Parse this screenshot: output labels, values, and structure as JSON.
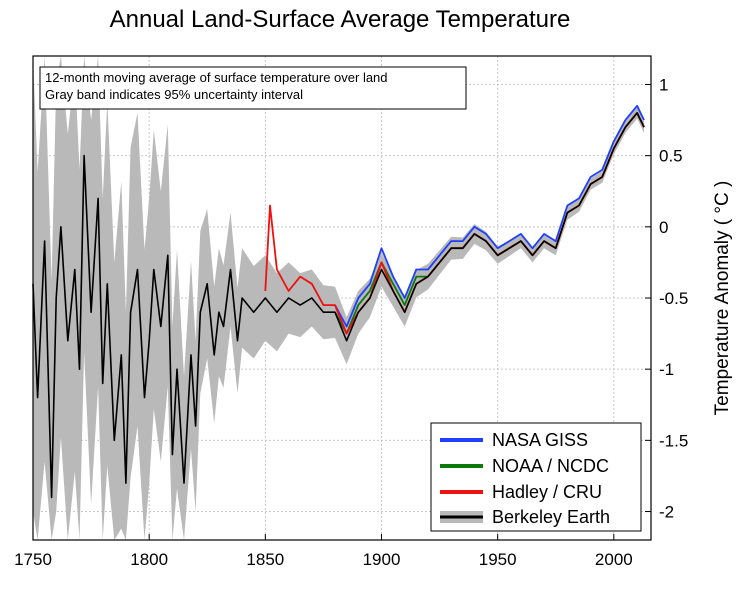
{
  "chart_data": {
    "type": "line",
    "title": "Annual Land-Surface Average Temperature",
    "annotation": [
      "12-month moving average of surface temperature over land",
      "Gray band indicates 95% uncertainty interval"
    ],
    "xlabel": "",
    "ylabel": "Temperature Anomaly ( °C )",
    "xlim": [
      1750,
      2016
    ],
    "ylim": [
      -2.2,
      1.2
    ],
    "xticks": [
      1750,
      1800,
      1850,
      1900,
      1950,
      2000
    ],
    "yticks": [
      1,
      0.5,
      0,
      -0.5,
      -1,
      -1.5,
      -2
    ],
    "ytick_labels": [
      "1",
      "0.5",
      "0",
      "-0.5",
      "-1",
      "-1.5",
      "-2"
    ],
    "grid": true,
    "legend_position": "bottom-right",
    "series": [
      {
        "name": "NASA GISS",
        "color": "#1f3fff",
        "x": [
          1880,
          1885,
          1890,
          1895,
          1900,
          1905,
          1910,
          1915,
          1920,
          1925,
          1930,
          1935,
          1940,
          1945,
          1950,
          1955,
          1960,
          1965,
          1970,
          1975,
          1980,
          1985,
          1990,
          1995,
          2000,
          2005,
          2010,
          2013
        ],
        "y": [
          -0.55,
          -0.7,
          -0.5,
          -0.4,
          -0.15,
          -0.35,
          -0.5,
          -0.3,
          -0.3,
          -0.2,
          -0.1,
          -0.1,
          0.0,
          -0.05,
          -0.15,
          -0.1,
          -0.05,
          -0.15,
          -0.05,
          -0.1,
          0.15,
          0.2,
          0.35,
          0.4,
          0.6,
          0.75,
          0.85,
          0.75
        ]
      },
      {
        "name": "NOAA / NCDC",
        "color": "#0a7a0a",
        "x": [
          1880,
          1885,
          1890,
          1895,
          1900,
          1905,
          1910,
          1915,
          1920,
          1925,
          1930,
          1935,
          1940,
          1945,
          1950,
          1955,
          1960,
          1965,
          1970,
          1975,
          1980,
          1985,
          1990,
          1995,
          2000,
          2005,
          2010,
          2013
        ],
        "y": [
          -0.6,
          -0.75,
          -0.55,
          -0.45,
          -0.25,
          -0.4,
          -0.55,
          -0.35,
          -0.35,
          -0.25,
          -0.15,
          -0.15,
          -0.05,
          -0.1,
          -0.2,
          -0.15,
          -0.1,
          -0.2,
          -0.1,
          -0.15,
          0.1,
          0.15,
          0.3,
          0.35,
          0.55,
          0.7,
          0.8,
          0.7
        ]
      },
      {
        "name": "Hadley / CRU",
        "color": "#ee1111",
        "x": [
          1850,
          1852,
          1855,
          1860,
          1865,
          1870,
          1875,
          1880,
          1885,
          1890,
          1895,
          1900,
          1905,
          1910,
          1915,
          1920,
          1925,
          1930,
          1935,
          1940,
          1945,
          1950,
          1955,
          1960,
          1965,
          1970,
          1975,
          1980,
          1985,
          1990,
          1995,
          2000,
          2005,
          2010,
          2013
        ],
        "y": [
          -0.45,
          0.15,
          -0.3,
          -0.45,
          -0.35,
          -0.4,
          -0.55,
          -0.55,
          -0.75,
          -0.6,
          -0.5,
          -0.25,
          -0.45,
          -0.6,
          -0.4,
          -0.35,
          -0.25,
          -0.15,
          -0.15,
          -0.05,
          -0.1,
          -0.2,
          -0.15,
          -0.1,
          -0.2,
          -0.1,
          -0.15,
          0.1,
          0.15,
          0.3,
          0.35,
          0.55,
          0.7,
          0.8,
          0.7
        ]
      },
      {
        "name": "Berkeley Earth",
        "color": "#000000",
        "x": [
          1750,
          1752,
          1755,
          1758,
          1760,
          1762,
          1765,
          1768,
          1770,
          1772,
          1775,
          1778,
          1780,
          1782,
          1785,
          1788,
          1790,
          1792,
          1795,
          1798,
          1800,
          1802,
          1805,
          1808,
          1810,
          1812,
          1815,
          1818,
          1820,
          1822,
          1825,
          1828,
          1830,
          1832,
          1835,
          1838,
          1840,
          1845,
          1850,
          1855,
          1860,
          1865,
          1870,
          1875,
          1880,
          1885,
          1890,
          1895,
          1900,
          1905,
          1910,
          1915,
          1920,
          1925,
          1930,
          1935,
          1940,
          1945,
          1950,
          1955,
          1960,
          1965,
          1970,
          1975,
          1980,
          1985,
          1990,
          1995,
          2000,
          2005,
          2010,
          2013
        ],
        "y": [
          -0.4,
          -1.2,
          -0.1,
          -1.9,
          -0.5,
          0.0,
          -0.8,
          -0.3,
          -1.0,
          0.5,
          -0.6,
          0.2,
          -1.1,
          -0.4,
          -1.5,
          -0.9,
          -1.8,
          -0.6,
          -0.3,
          -1.2,
          -0.8,
          -0.3,
          -0.7,
          -0.2,
          -1.6,
          -1.0,
          -1.8,
          -0.9,
          -1.4,
          -0.6,
          -0.4,
          -0.9,
          -0.6,
          -0.7,
          -0.3,
          -0.8,
          -0.5,
          -0.6,
          -0.5,
          -0.6,
          -0.5,
          -0.55,
          -0.5,
          -0.6,
          -0.6,
          -0.8,
          -0.6,
          -0.5,
          -0.3,
          -0.45,
          -0.6,
          -0.4,
          -0.35,
          -0.25,
          -0.15,
          -0.15,
          -0.05,
          -0.1,
          -0.2,
          -0.15,
          -0.1,
          -0.2,
          -0.1,
          -0.15,
          0.1,
          0.15,
          0.3,
          0.35,
          0.55,
          0.7,
          0.8,
          0.7
        ]
      }
    ],
    "uncertainty_band": {
      "color": "#b9b9b9",
      "x": [
        1750,
        1760,
        1770,
        1780,
        1790,
        1800,
        1810,
        1820,
        1830,
        1840,
        1850,
        1860,
        1870,
        1880,
        1890,
        1900,
        1910,
        1920,
        1930,
        1940,
        1950,
        1960,
        1970,
        1980,
        1990,
        2000,
        2010,
        2013
      ],
      "half_width": [
        1.6,
        1.5,
        1.4,
        1.3,
        1.2,
        1.0,
        0.9,
        0.6,
        0.45,
        0.35,
        0.3,
        0.25,
        0.2,
        0.18,
        0.15,
        0.12,
        0.1,
        0.09,
        0.08,
        0.07,
        0.06,
        0.05,
        0.05,
        0.05,
        0.04,
        0.04,
        0.04,
        0.04
      ]
    }
  }
}
